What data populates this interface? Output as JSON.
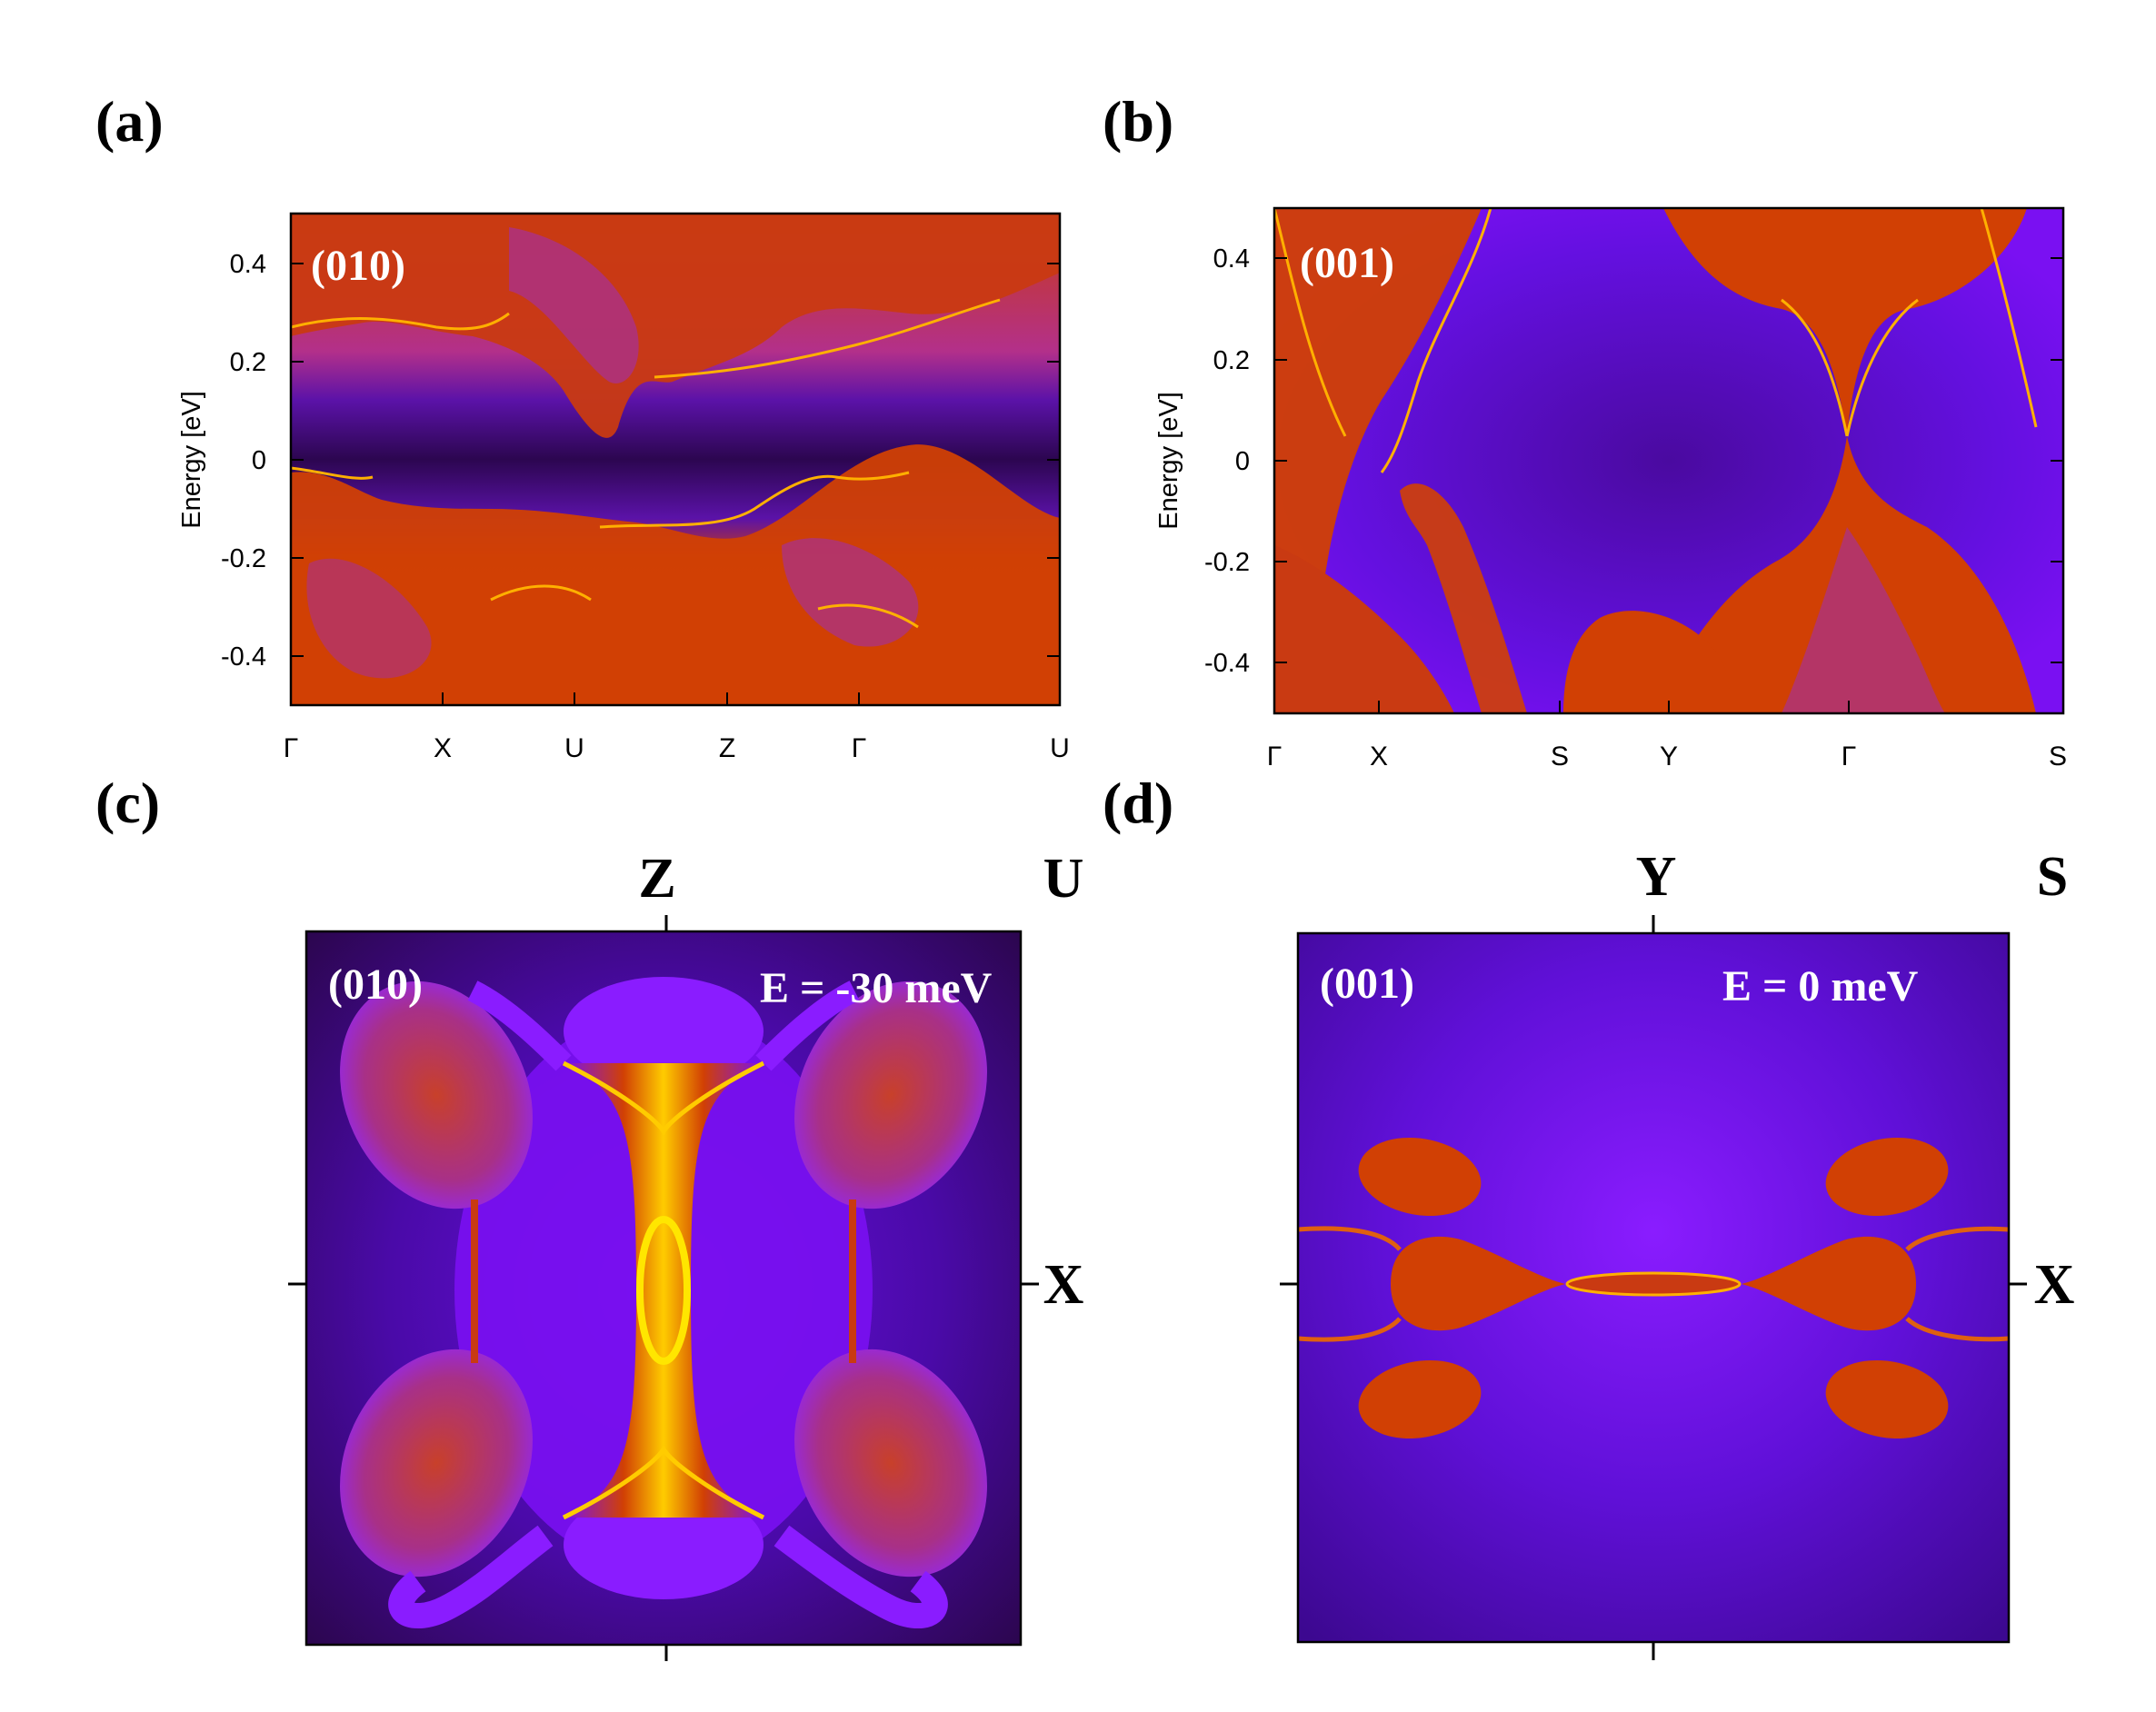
{
  "colors": {
    "dark": "#2c0650",
    "violet": "#7a10f2",
    "magenta": "#9a2aa8",
    "orange": "#d14004",
    "bright": "#ffcc00"
  },
  "panels": {
    "a": {
      "label": "(a)",
      "surface": "(010)",
      "ylabel": "Energy [eV]",
      "yticks": [
        "0.4",
        "0.2",
        "0",
        "-0.2",
        "-0.4"
      ],
      "kpoints": [
        "Γ",
        "X",
        "U",
        "Z",
        "Γ",
        "U"
      ]
    },
    "b": {
      "label": "(b)",
      "surface": "(001)",
      "ylabel": "Energy [eV]",
      "yticks": [
        "0.4",
        "0.2",
        "0",
        "-0.2",
        "-0.4"
      ],
      "kpoints": [
        "Γ",
        "X",
        "S",
        "Y",
        "Γ",
        "S"
      ]
    },
    "c": {
      "label": "(c)",
      "surface": "(010)",
      "energy": "E = -30 meV",
      "top_left": "Z",
      "top_right": "U",
      "right": "X"
    },
    "d": {
      "label": "(d)",
      "surface": "(001)",
      "energy": "E = 0 meV",
      "top_left": "Y",
      "top_right": "S",
      "right": "X"
    }
  },
  "chart_data": [
    {
      "type": "heatmap",
      "title": "(010)",
      "ylabel": "Energy [eV]",
      "ylim": [
        -0.5,
        0.5
      ],
      "yticks": [
        0.4,
        0.2,
        0,
        -0.2,
        -0.4
      ],
      "xticks": [
        "Γ",
        "X",
        "U",
        "Z",
        "Γ",
        "U"
      ],
      "colormap": [
        "#2c0650",
        "#7a10f2",
        "#9a2aa8",
        "#d14004",
        "#ffcc00"
      ]
    },
    {
      "type": "heatmap",
      "title": "(001)",
      "ylabel": "Energy [eV]",
      "ylim": [
        -0.5,
        0.5
      ],
      "yticks": [
        0.4,
        0.2,
        0,
        -0.2,
        -0.4
      ],
      "xticks": [
        "Γ",
        "X",
        "S",
        "Y",
        "Γ",
        "S"
      ],
      "colormap": [
        "#2c0650",
        "#7a10f2",
        "#9a2aa8",
        "#d14004",
        "#ffcc00"
      ]
    },
    {
      "type": "heatmap",
      "title": "(010)",
      "annotation": "E = -30 meV",
      "corner_labels": [
        "Z",
        "U",
        "X"
      ],
      "colormap": [
        "#2c0650",
        "#7a10f2",
        "#9a2aa8",
        "#d14004",
        "#ffcc00"
      ]
    },
    {
      "type": "heatmap",
      "title": "(001)",
      "annotation": "E = 0 meV",
      "corner_labels": [
        "Y",
        "S",
        "X"
      ],
      "colormap": [
        "#2c0650",
        "#7a10f2",
        "#9a2aa8",
        "#d14004",
        "#ffcc00"
      ]
    }
  ]
}
